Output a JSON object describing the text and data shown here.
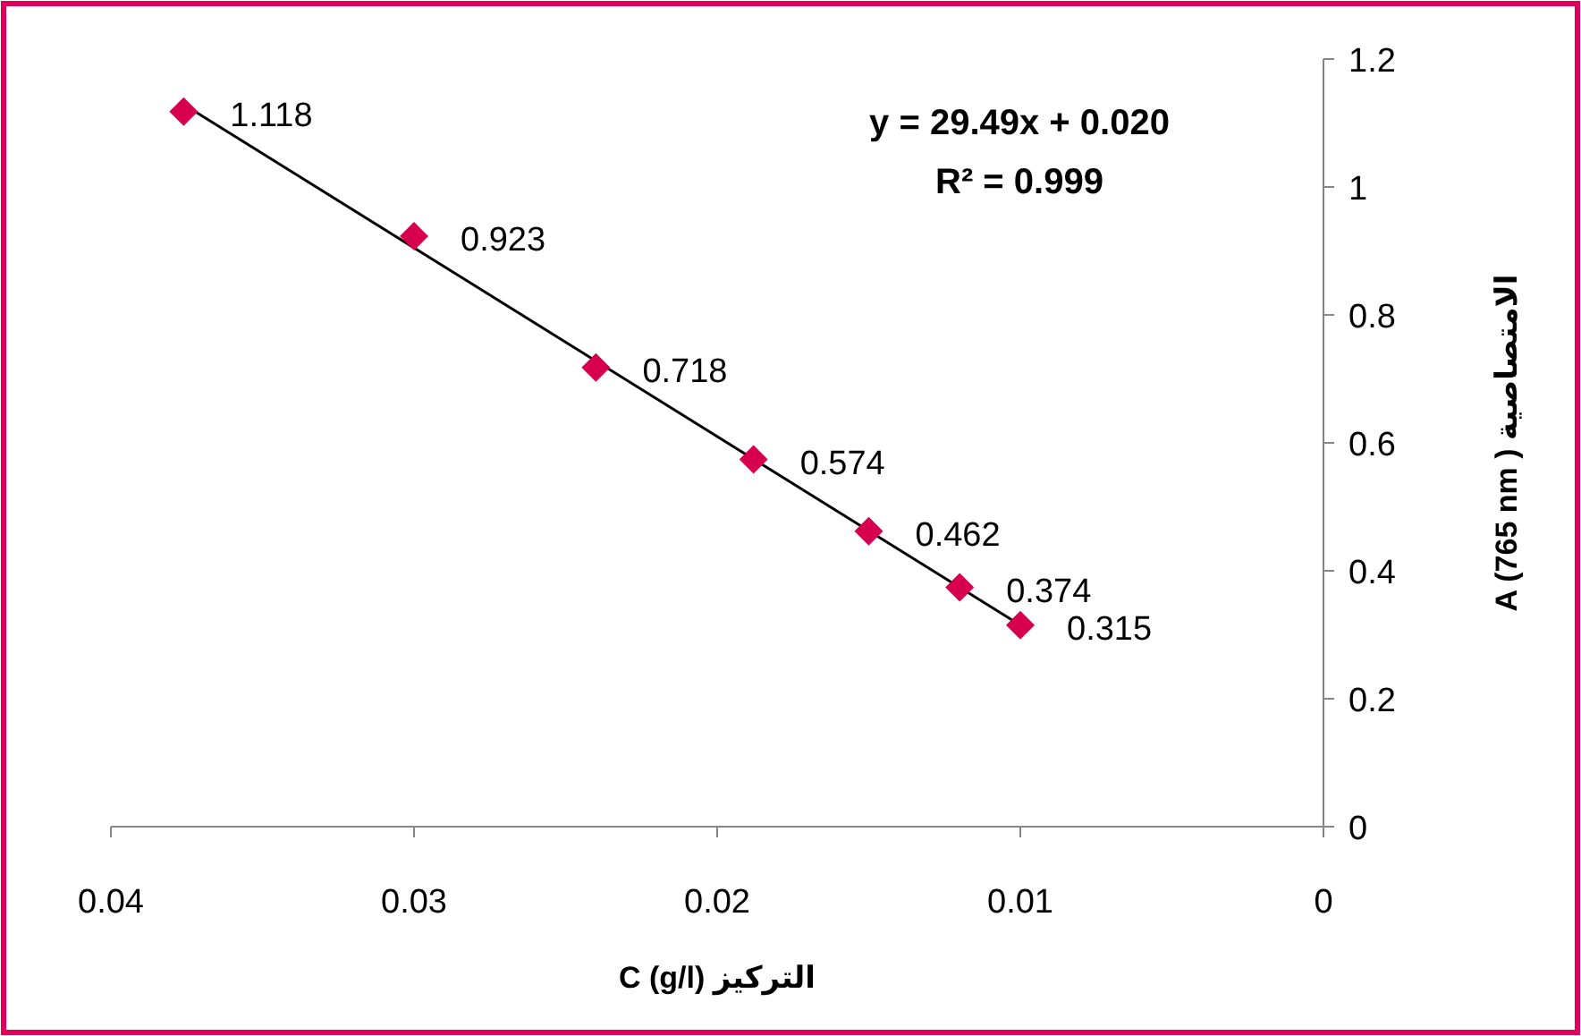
{
  "chart_data": {
    "type": "scatter",
    "xlabel": "C (g/l) التركيز",
    "ylabel": "A (765 nm ) الامتصاصية",
    "xlim": [
      0.04,
      0
    ],
    "xticks": [
      0.04,
      0.03,
      0.02,
      0.01,
      0
    ],
    "ylim": [
      0,
      1.2
    ],
    "yticks": [
      0,
      0.2,
      0.4,
      0.6,
      0.8,
      1,
      1.2
    ],
    "series": [
      {
        "color": "#d6004f",
        "marker": "diamond",
        "x": [
          0.0376,
          0.03,
          0.024,
          0.0188,
          0.015,
          0.012,
          0.01
        ],
        "values": [
          1.118,
          0.923,
          0.718,
          0.574,
          0.462,
          0.374,
          0.315
        ],
        "value_labels": [
          "1.118",
          "0.923",
          "0.718",
          "0.574",
          "0.462",
          "0.374",
          "0.315"
        ]
      },
      {
        "type": "line",
        "color": "#000000",
        "marker": "none",
        "line_style": "solid",
        "x": [
          0.0376,
          0.01
        ],
        "values": [
          1.129,
          0.315
        ]
      }
    ],
    "grid": false,
    "annotations": [
      "y = 29.49x + 0.020",
      "R² = 0.999"
    ]
  }
}
